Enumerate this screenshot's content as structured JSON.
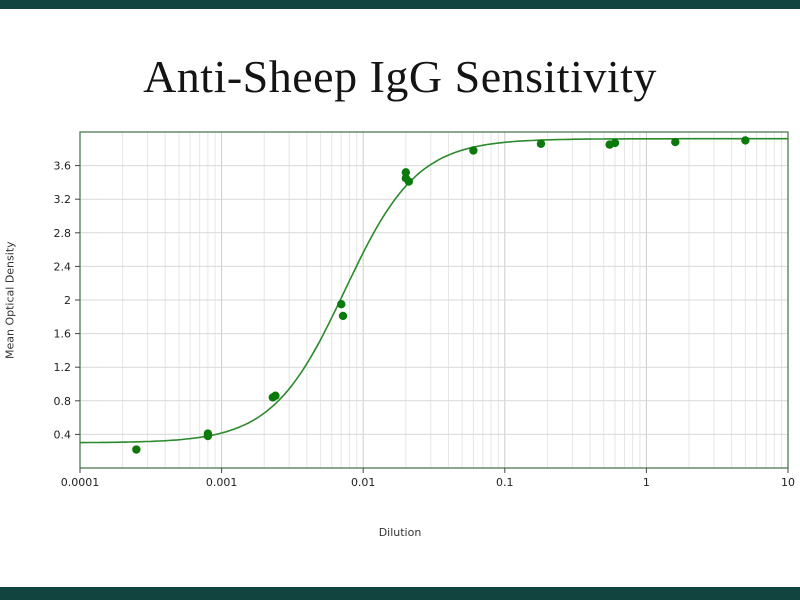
{
  "page": {
    "top_bar_color": "#12443f",
    "bottom_bar_color": "#12443f",
    "background": "#ffffff"
  },
  "chart_data": {
    "type": "scatter",
    "title": "Anti-Sheep IgG Sensitivity",
    "xlabel": "Dilution",
    "ylabel": "Mean Optical Density",
    "x_scale": "log",
    "xlim": [
      0.0001,
      10
    ],
    "ylim": [
      0,
      4.0
    ],
    "x_ticks": [
      0.0001,
      0.001,
      0.01,
      0.1,
      1,
      10
    ],
    "x_tick_labels": [
      "0.0001",
      "0.001",
      "0.01",
      "0.1",
      "1",
      "10"
    ],
    "y_ticks": [
      0.4,
      0.8,
      1.2,
      1.6,
      2,
      2.4,
      2.8,
      3.2,
      3.6
    ],
    "y_tick_labels": [
      "0.4",
      "0.8",
      "1.2",
      "1.6",
      "2",
      "2.4",
      "2.8",
      "3.2",
      "3.6"
    ],
    "grid": true,
    "legend": "none",
    "points": [
      [
        0.00025,
        0.22
      ],
      [
        0.0008,
        0.38
      ],
      [
        0.0008,
        0.41
      ],
      [
        0.0023,
        0.84
      ],
      [
        0.0024,
        0.86
      ],
      [
        0.007,
        1.95
      ],
      [
        0.0072,
        1.81
      ],
      [
        0.02,
        3.52
      ],
      [
        0.02,
        3.45
      ],
      [
        0.021,
        3.41
      ],
      [
        0.06,
        3.78
      ],
      [
        0.18,
        3.86
      ],
      [
        0.55,
        3.85
      ],
      [
        0.6,
        3.87
      ],
      [
        1.6,
        3.88
      ],
      [
        5,
        3.9
      ]
    ],
    "curve": {
      "model": "4pl-sigmoid",
      "bottom": 0.3,
      "top": 3.92,
      "ec50": 0.0074,
      "hill": 1.7
    },
    "colors": {
      "point": "#0b7a0b",
      "curve": "#2b8a2b",
      "grid_minor": "#e6e6e6",
      "grid_major": "#cccccc",
      "grid_horizontal": "#d9d9d9",
      "frame": "#4f7a52",
      "tick_text": "#222222",
      "tick_mark": "#444444"
    }
  }
}
